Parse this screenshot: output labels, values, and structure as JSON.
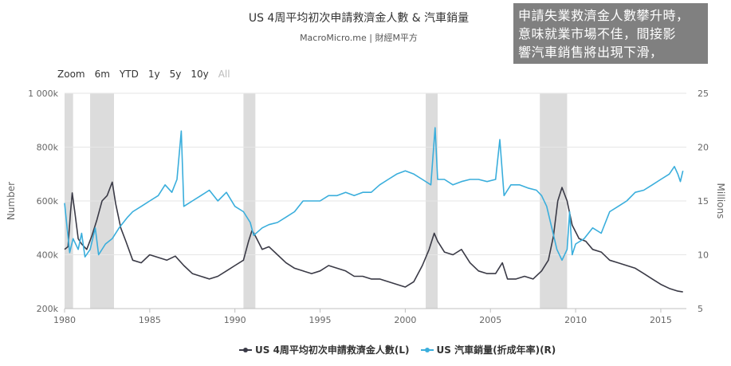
{
  "header": {
    "title": "US 4周平均初次申請救濟金人數 & 汽車銷量",
    "subtitle": "MacroMicro.me | 財經M平方"
  },
  "annotation": {
    "lines": [
      "申請失業救濟金人數攀升時，",
      "意味就業市場不佳，間接影",
      "響汽車銷售將出現下滑，"
    ]
  },
  "zoom": {
    "label": "Zoom",
    "options": [
      "6m",
      "YTD",
      "1y",
      "5y",
      "10y",
      "All"
    ]
  },
  "colors": {
    "claims": "#3a3a46",
    "sales": "#3aaedc",
    "recession": "#dcdcdc"
  },
  "chart_data": {
    "type": "line",
    "title": "US 4周平均初次申請救濟金人數 & 汽車銷量",
    "subtitle": "MacroMicro.me | 財經M平方",
    "x_ticks": [
      1980,
      1985,
      1990,
      1995,
      2000,
      2005,
      2010,
      2015
    ],
    "xlim": [
      1980,
      2016.5
    ],
    "y_left": {
      "label": "Number",
      "lim": [
        200000,
        1000000
      ],
      "ticks": [
        200000,
        400000,
        600000,
        800000,
        1000000
      ],
      "tick_labels": [
        "200k",
        "400k",
        "600k",
        "800k",
        "1 000k"
      ]
    },
    "y_right": {
      "label": "Millions",
      "lim": [
        5,
        25
      ],
      "ticks": [
        5,
        10,
        15,
        20,
        25
      ],
      "tick_labels": [
        "5",
        "10",
        "15",
        "20",
        "25"
      ]
    },
    "recessions": [
      [
        1980.0,
        1980.5
      ],
      [
        1981.5,
        1982.9
      ],
      [
        1990.5,
        1991.2
      ],
      [
        2001.2,
        2001.9
      ],
      [
        2007.9,
        2009.5
      ]
    ],
    "series": [
      {
        "name": "US 4周平均初次申請救濟金人數(L)",
        "axis": "left",
        "points": [
          [
            1980.0,
            420000
          ],
          [
            1980.2,
            430000
          ],
          [
            1980.35,
            560000
          ],
          [
            1980.45,
            630000
          ],
          [
            1980.6,
            560000
          ],
          [
            1980.8,
            460000
          ],
          [
            1981.0,
            440000
          ],
          [
            1981.3,
            420000
          ],
          [
            1981.6,
            470000
          ],
          [
            1981.9,
            530000
          ],
          [
            1982.2,
            600000
          ],
          [
            1982.5,
            620000
          ],
          [
            1982.8,
            670000
          ],
          [
            1983.0,
            590000
          ],
          [
            1983.3,
            500000
          ],
          [
            1983.6,
            450000
          ],
          [
            1984.0,
            380000
          ],
          [
            1984.5,
            370000
          ],
          [
            1985.0,
            400000
          ],
          [
            1985.5,
            390000
          ],
          [
            1986.0,
            380000
          ],
          [
            1986.5,
            395000
          ],
          [
            1987.0,
            360000
          ],
          [
            1987.5,
            330000
          ],
          [
            1988.0,
            320000
          ],
          [
            1988.5,
            310000
          ],
          [
            1989.0,
            320000
          ],
          [
            1989.5,
            340000
          ],
          [
            1990.0,
            360000
          ],
          [
            1990.5,
            380000
          ],
          [
            1990.8,
            450000
          ],
          [
            1991.0,
            490000
          ],
          [
            1991.2,
            470000
          ],
          [
            1991.6,
            420000
          ],
          [
            1992.0,
            430000
          ],
          [
            1992.5,
            400000
          ],
          [
            1993.0,
            370000
          ],
          [
            1993.5,
            350000
          ],
          [
            1994.0,
            340000
          ],
          [
            1994.5,
            330000
          ],
          [
            1995.0,
            340000
          ],
          [
            1995.5,
            360000
          ],
          [
            1996.0,
            350000
          ],
          [
            1996.5,
            340000
          ],
          [
            1997.0,
            320000
          ],
          [
            1997.5,
            320000
          ],
          [
            1998.0,
            310000
          ],
          [
            1998.5,
            310000
          ],
          [
            1999.0,
            300000
          ],
          [
            1999.5,
            290000
          ],
          [
            2000.0,
            280000
          ],
          [
            2000.5,
            300000
          ],
          [
            2001.0,
            360000
          ],
          [
            2001.4,
            420000
          ],
          [
            2001.7,
            480000
          ],
          [
            2001.9,
            450000
          ],
          [
            2002.3,
            410000
          ],
          [
            2002.8,
            400000
          ],
          [
            2003.3,
            420000
          ],
          [
            2003.8,
            370000
          ],
          [
            2004.3,
            340000
          ],
          [
            2004.8,
            330000
          ],
          [
            2005.3,
            330000
          ],
          [
            2005.7,
            370000
          ],
          [
            2006.0,
            310000
          ],
          [
            2006.5,
            310000
          ],
          [
            2007.0,
            320000
          ],
          [
            2007.5,
            310000
          ],
          [
            2008.0,
            340000
          ],
          [
            2008.4,
            380000
          ],
          [
            2008.7,
            470000
          ],
          [
            2008.95,
            600000
          ],
          [
            2009.2,
            650000
          ],
          [
            2009.5,
            600000
          ],
          [
            2009.8,
            510000
          ],
          [
            2010.2,
            460000
          ],
          [
            2010.6,
            450000
          ],
          [
            2011.0,
            420000
          ],
          [
            2011.5,
            410000
          ],
          [
            2012.0,
            380000
          ],
          [
            2012.5,
            370000
          ],
          [
            2013.0,
            360000
          ],
          [
            2013.5,
            350000
          ],
          [
            2014.0,
            330000
          ],
          [
            2014.5,
            310000
          ],
          [
            2015.0,
            290000
          ],
          [
            2015.5,
            275000
          ],
          [
            2016.0,
            265000
          ],
          [
            2016.3,
            262000
          ]
        ]
      },
      {
        "name": "US 汽車銷量(折成年率)(R)",
        "axis": "right",
        "points": [
          [
            1980.0,
            14.8
          ],
          [
            1980.15,
            12.5
          ],
          [
            1980.3,
            10.2
          ],
          [
            1980.5,
            11.5
          ],
          [
            1980.8,
            10.5
          ],
          [
            1981.0,
            12.0
          ],
          [
            1981.2,
            9.8
          ],
          [
            1981.5,
            10.5
          ],
          [
            1981.8,
            12.5
          ],
          [
            1982.0,
            10.0
          ],
          [
            1982.4,
            11.0
          ],
          [
            1982.8,
            11.5
          ],
          [
            1983.2,
            12.5
          ],
          [
            1983.7,
            13.5
          ],
          [
            1984.0,
            14.0
          ],
          [
            1984.5,
            14.5
          ],
          [
            1985.0,
            15.0
          ],
          [
            1985.5,
            15.5
          ],
          [
            1985.9,
            16.5
          ],
          [
            1986.3,
            15.8
          ],
          [
            1986.6,
            17.0
          ],
          [
            1986.85,
            21.5
          ],
          [
            1987.0,
            14.5
          ],
          [
            1987.5,
            15.0
          ],
          [
            1988.0,
            15.5
          ],
          [
            1988.5,
            16.0
          ],
          [
            1989.0,
            15.0
          ],
          [
            1989.5,
            15.8
          ],
          [
            1990.0,
            14.5
          ],
          [
            1990.5,
            14.0
          ],
          [
            1990.9,
            13.0
          ],
          [
            1991.1,
            11.8
          ],
          [
            1991.6,
            12.5
          ],
          [
            1992.0,
            12.8
          ],
          [
            1992.5,
            13.0
          ],
          [
            1993.0,
            13.5
          ],
          [
            1993.5,
            14.0
          ],
          [
            1994.0,
            15.0
          ],
          [
            1994.5,
            15.0
          ],
          [
            1995.0,
            15.0
          ],
          [
            1995.5,
            15.5
          ],
          [
            1996.0,
            15.5
          ],
          [
            1996.5,
            15.8
          ],
          [
            1997.0,
            15.5
          ],
          [
            1997.5,
            15.8
          ],
          [
            1998.0,
            15.8
          ],
          [
            1998.5,
            16.5
          ],
          [
            1999.0,
            17.0
          ],
          [
            1999.5,
            17.5
          ],
          [
            2000.0,
            17.8
          ],
          [
            2000.5,
            17.5
          ],
          [
            2001.0,
            17.0
          ],
          [
            2001.5,
            16.5
          ],
          [
            2001.75,
            21.8
          ],
          [
            2001.9,
            17.0
          ],
          [
            2002.3,
            17.0
          ],
          [
            2002.8,
            16.5
          ],
          [
            2003.3,
            16.8
          ],
          [
            2003.8,
            17.0
          ],
          [
            2004.3,
            17.0
          ],
          [
            2004.8,
            16.8
          ],
          [
            2005.3,
            17.0
          ],
          [
            2005.55,
            20.7
          ],
          [
            2005.8,
            15.5
          ],
          [
            2006.2,
            16.5
          ],
          [
            2006.7,
            16.5
          ],
          [
            2007.2,
            16.2
          ],
          [
            2007.7,
            16.0
          ],
          [
            2008.0,
            15.5
          ],
          [
            2008.3,
            14.5
          ],
          [
            2008.6,
            12.5
          ],
          [
            2008.9,
            10.5
          ],
          [
            2009.2,
            9.5
          ],
          [
            2009.5,
            10.5
          ],
          [
            2009.65,
            14.0
          ],
          [
            2009.8,
            10.0
          ],
          [
            2010.0,
            11.0
          ],
          [
            2010.5,
            11.5
          ],
          [
            2011.0,
            12.5
          ],
          [
            2011.5,
            12.0
          ],
          [
            2012.0,
            14.0
          ],
          [
            2012.5,
            14.5
          ],
          [
            2013.0,
            15.0
          ],
          [
            2013.5,
            15.8
          ],
          [
            2014.0,
            16.0
          ],
          [
            2014.5,
            16.5
          ],
          [
            2015.0,
            17.0
          ],
          [
            2015.5,
            17.5
          ],
          [
            2015.8,
            18.2
          ],
          [
            2016.0,
            17.5
          ],
          [
            2016.15,
            16.8
          ],
          [
            2016.3,
            17.8
          ]
        ]
      }
    ]
  }
}
